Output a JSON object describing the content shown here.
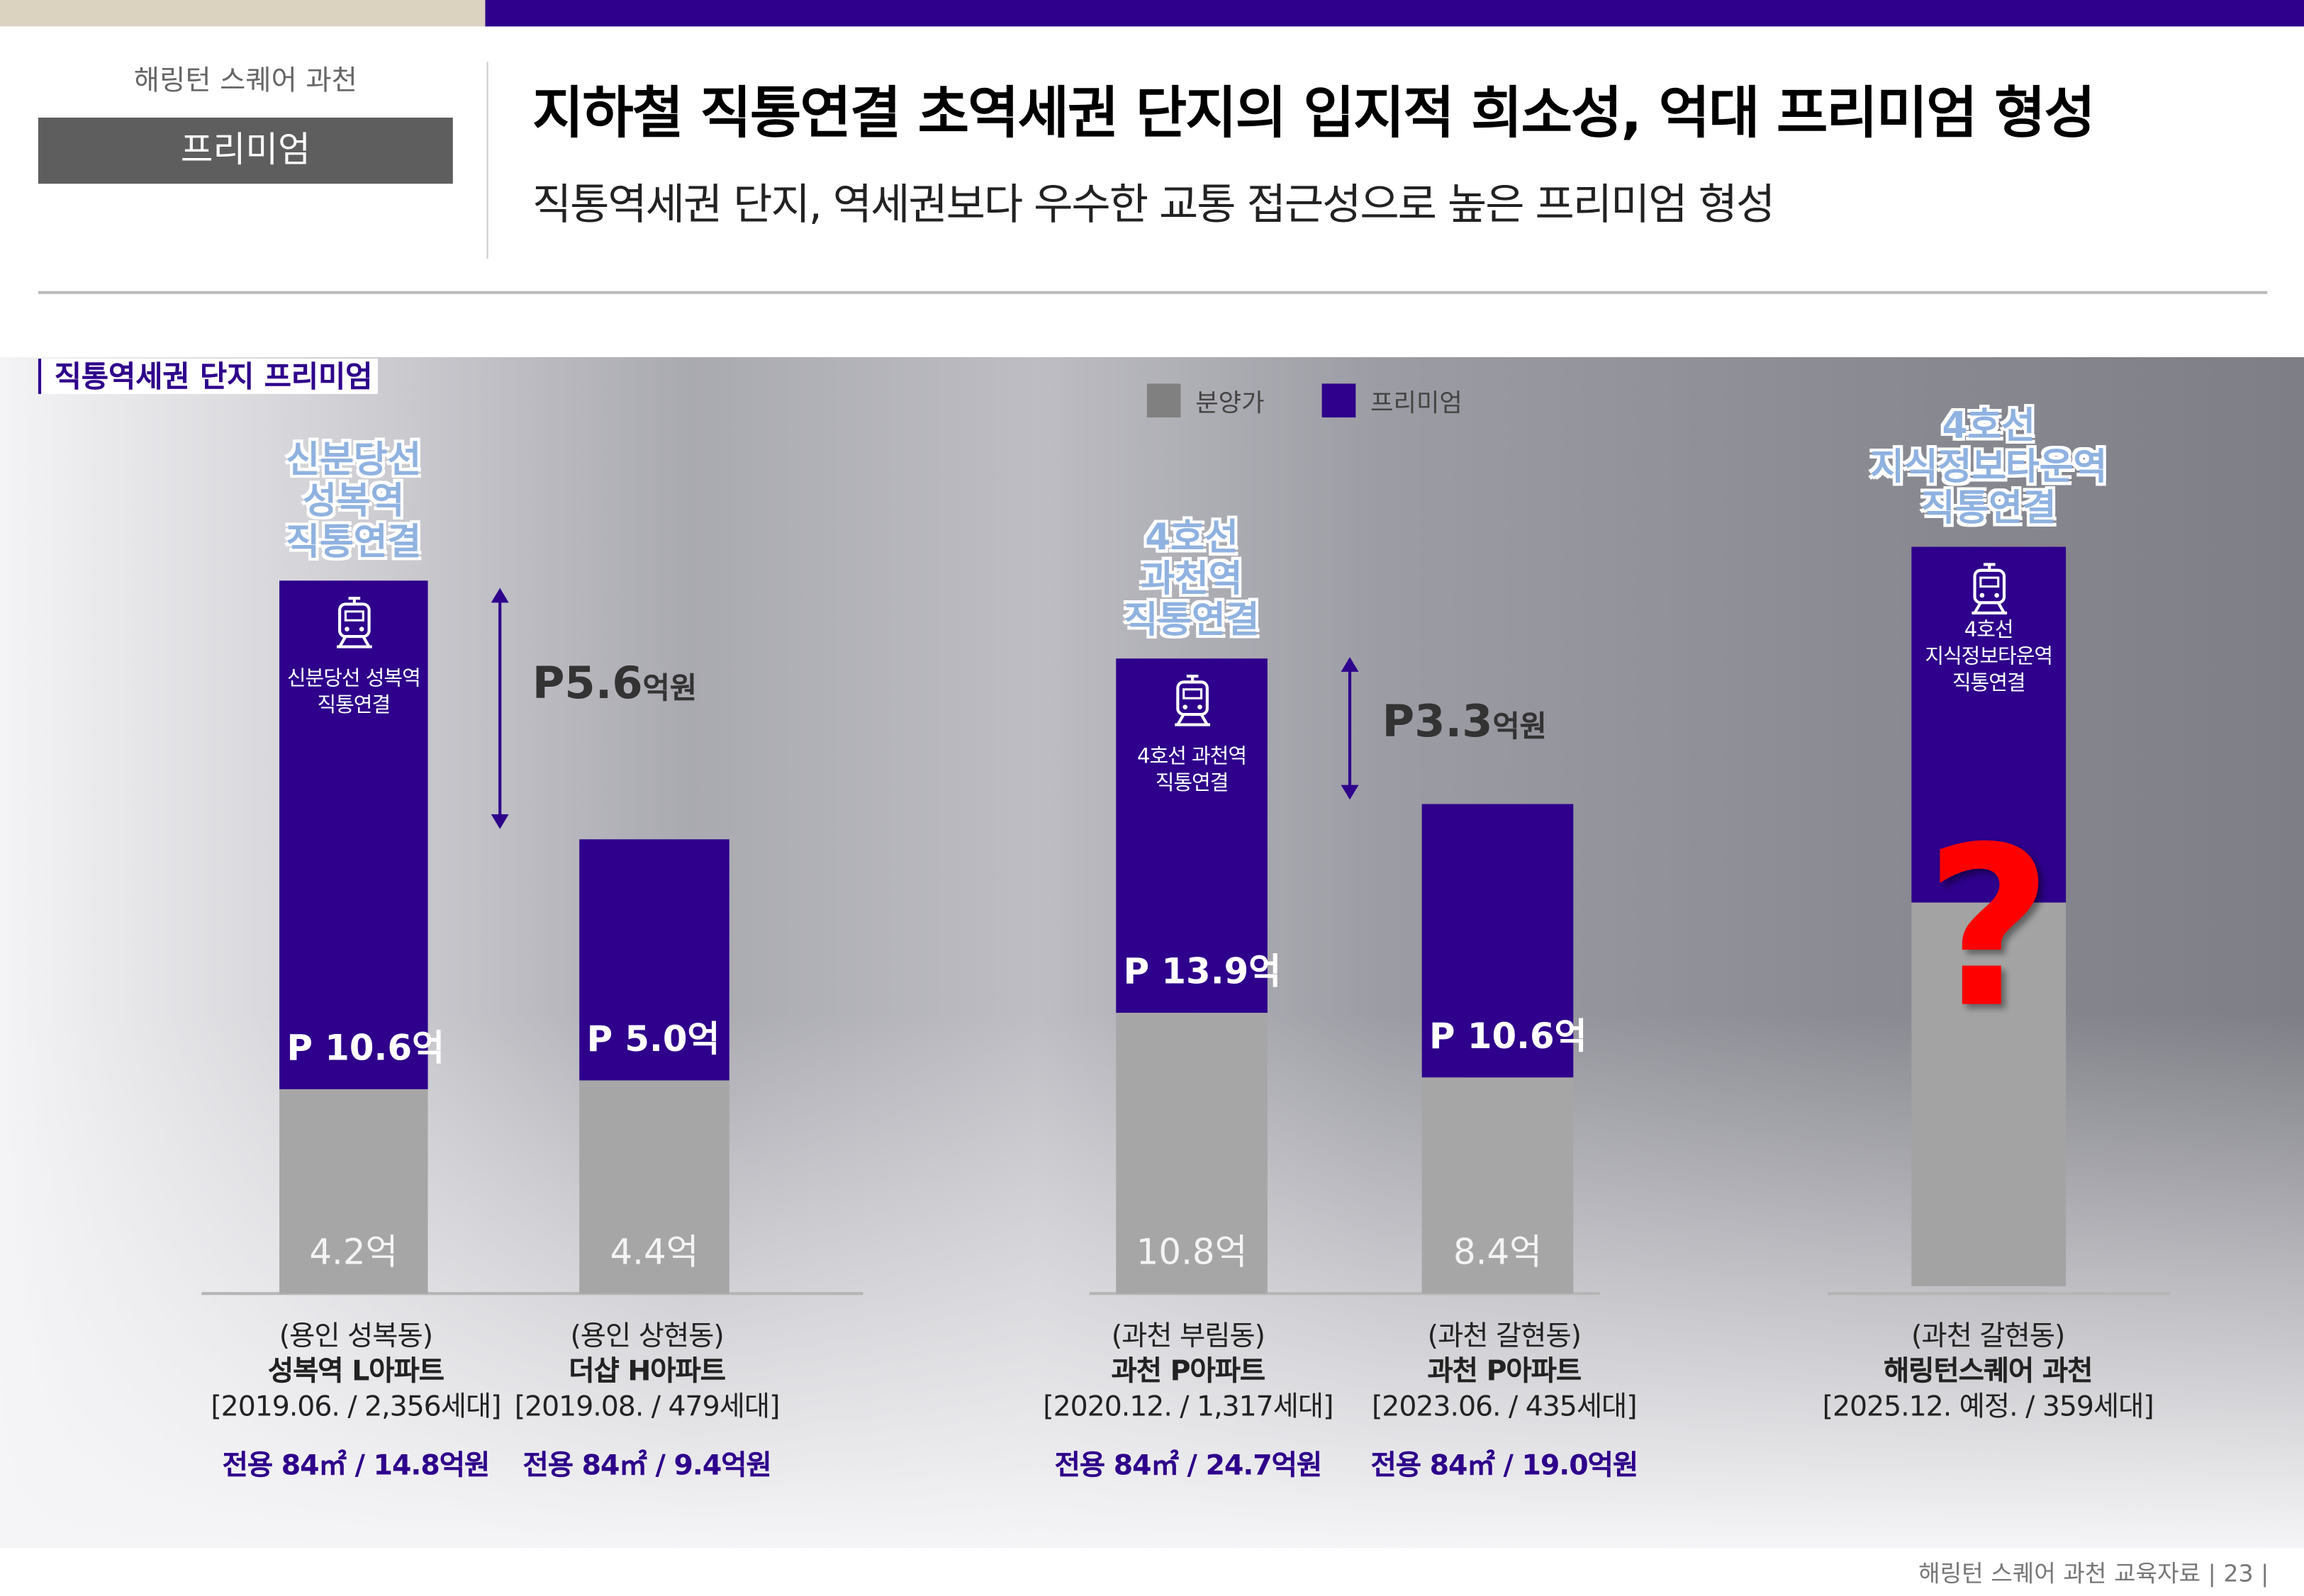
{
  "header": {
    "brand": "해링턴 스퀘어 과천",
    "tag": "프리미엄",
    "title": "지하철 직통연결 초역세권 단지의 입지적 희소성, 억대 프리미엄 형성",
    "subtitle": "직통역세권 단지, 역세권보다 우수한 교통 접근성으로 높은 프리미엄 형성"
  },
  "section_title": "직통역세권 단지 프리미엄",
  "colors": {
    "accent": "#2e008b",
    "sale": "#a6a6a6",
    "question": "#ff0000"
  },
  "chart_data": {
    "type": "bar",
    "stacked": true,
    "unit": "억",
    "legend": [
      "분양가",
      "프리미엄"
    ],
    "categories": [
      "성복역 L아파트",
      "더샵 H아파트",
      "과천 P아파트",
      "과천 P아파트",
      "해링턴스퀘어 과천"
    ],
    "series": [
      {
        "name": "분양가",
        "values": [
          4.2,
          4.4,
          10.8,
          8.4,
          null
        ],
        "labels": [
          "4.2억",
          "4.4억",
          "10.8억",
          "8.4억",
          ""
        ]
      },
      {
        "name": "프리미엄",
        "values": [
          10.6,
          5.0,
          13.9,
          10.6,
          null
        ],
        "labels": [
          "P 10.6억",
          "P 5.0억",
          "P 13.9억",
          "P 10.6억",
          ""
        ]
      }
    ],
    "callouts": [
      {
        "bar": 0,
        "text": [
          "신분당선",
          "성복역",
          "직통연결"
        ],
        "inbar": [
          "신분당선 성복역",
          "직통연결"
        ]
      },
      {
        "bar": 2,
        "text": [
          "4호선",
          "과천역",
          "직통연결"
        ],
        "inbar": [
          "4호선 과천역",
          "직통연결"
        ]
      },
      {
        "bar": 4,
        "text": [
          "4호선",
          "지식정보타운역",
          "직통연결"
        ],
        "inbar": [
          "4호선",
          "지식정보타운역",
          "직통연결"
        ]
      }
    ],
    "differences": [
      {
        "between": [
          0,
          1
        ],
        "value": "P5.6",
        "unit": "억원"
      },
      {
        "between": [
          2,
          3
        ],
        "value": "P3.3",
        "unit": "억원"
      }
    ],
    "unknown_mark": "?",
    "captions": [
      {
        "area": "(용인 성복동)",
        "name": "성복역 L아파트",
        "info": "[2019.06. / 2,356세대]",
        "price": "전용 84㎡ / 14.8억원"
      },
      {
        "area": "(용인 상현동)",
        "name": "더샵 H아파트",
        "info": "[2019.08. / 479세대]",
        "price": "전용 84㎡ / 9.4억원"
      },
      {
        "area": "(과천 부림동)",
        "name": "과천 P아파트",
        "info": "[2020.12. / 1,317세대]",
        "price": "전용 84㎡ / 24.7억원"
      },
      {
        "area": "(과천 갈현동)",
        "name": "과천 P아파트",
        "info": "[2023.06. / 435세대]",
        "price": "전용 84㎡ / 19.0억원"
      },
      {
        "area": "(과천 갈현동)",
        "name": "해링턴스퀘어 과천",
        "info": "[2025.12. 예정. / 359세대]",
        "price": ""
      }
    ]
  },
  "footer": "해링턴 스퀘어 과천 교육자료  |  23  |"
}
